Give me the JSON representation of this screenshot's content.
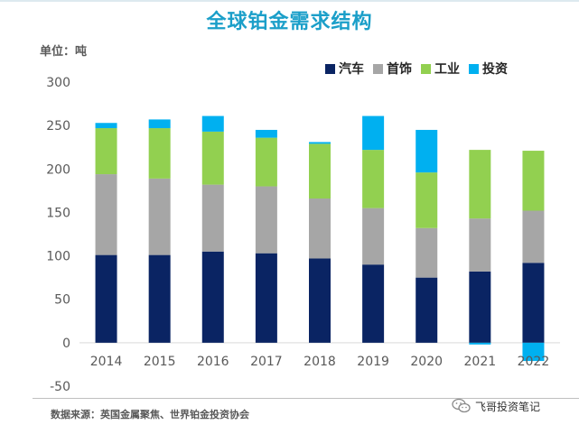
{
  "chart_data": {
    "type": "bar",
    "stacked": true,
    "title": "全球铂金需求结构",
    "unit_label": "单位：吨",
    "categories": [
      "2014",
      "2015",
      "2016",
      "2017",
      "2018",
      "2019",
      "2020",
      "2021",
      "2022"
    ],
    "series": [
      {
        "name": "汽车",
        "color": "#0a2463",
        "values": [
          101,
          101,
          105,
          103,
          97,
          90,
          75,
          82,
          92
        ]
      },
      {
        "name": "首饰",
        "color": "#a6a6a6",
        "values": [
          93,
          88,
          77,
          77,
          69,
          65,
          57,
          61,
          60
        ]
      },
      {
        "name": "工业",
        "color": "#92d050",
        "values": [
          53,
          58,
          61,
          56,
          63,
          67,
          64,
          79,
          69
        ]
      },
      {
        "name": "投资",
        "color": "#00b0f0",
        "values": [
          6,
          10,
          18,
          9,
          2,
          39,
          49,
          -2,
          -21
        ]
      }
    ],
    "yticks": [
      300,
      250,
      200,
      150,
      100,
      50,
      0,
      -50
    ],
    "ylim": [
      -50,
      300
    ],
    "grid": false,
    "legend_position": "top-right"
  },
  "source_text": "数据来源：英国金属聚焦、世界铂金投资协会",
  "watermark": {
    "text": "飞哥投资笔记",
    "icon": "wechat-icon"
  }
}
